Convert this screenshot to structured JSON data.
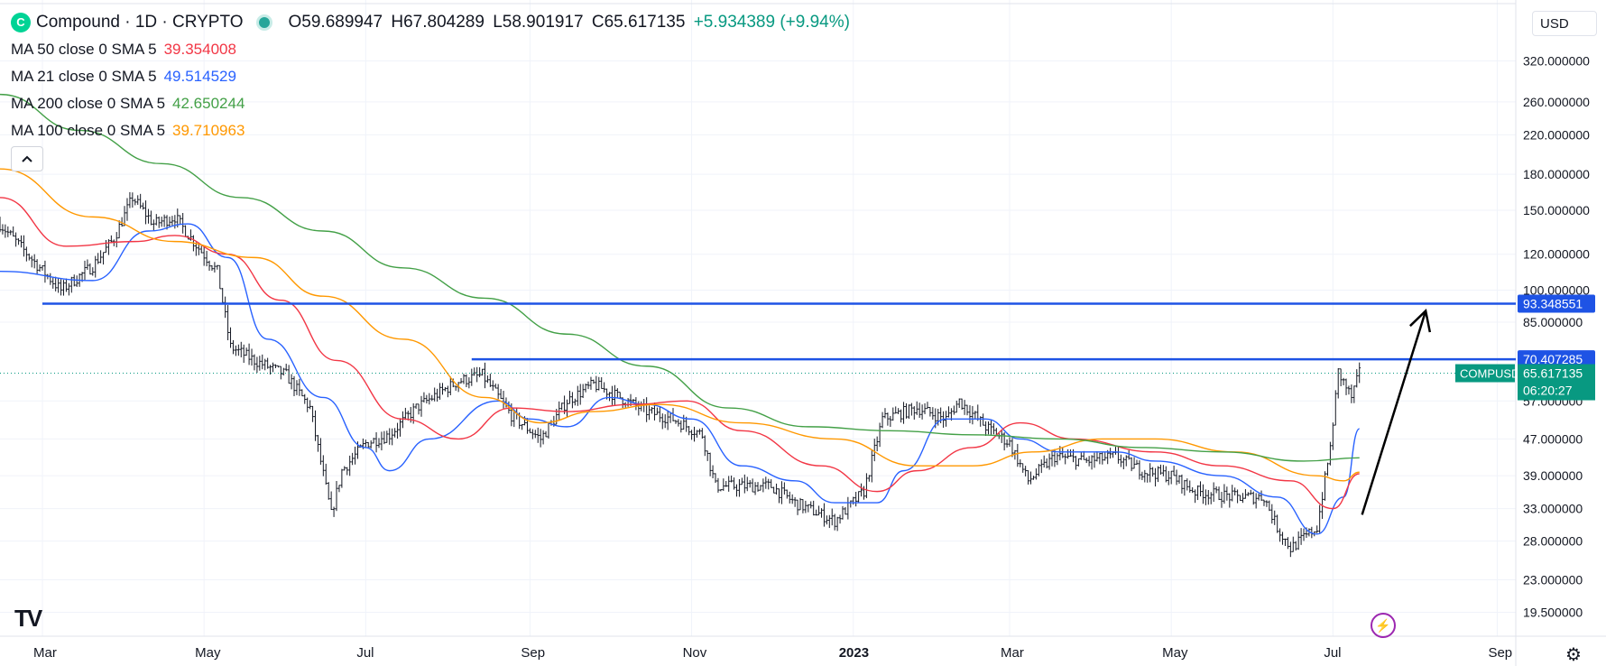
{
  "header": {
    "symbol_title": "Compound · 1D · CRYPTO",
    "logo_glyph": "C",
    "ohlc": {
      "open": "O59.689947",
      "high": "H67.804289",
      "low": "L58.901917",
      "close": "C65.617135",
      "change": "+5.934389 (+9.94%)"
    }
  },
  "indicators": [
    {
      "label": "MA 50 close 0 SMA 5",
      "value": "39.354008",
      "color": "#f23645"
    },
    {
      "label": "MA 21 close 0 SMA 5",
      "value": "49.514529",
      "color": "#2962ff"
    },
    {
      "label": "MA 200 close 0 SMA 5",
      "value": "42.650244",
      "color": "#43a047"
    },
    {
      "label": "MA 100 close 0 SMA 5",
      "value": "39.710963",
      "color": "#ff9800"
    }
  ],
  "collapse_icon": "chevron-up-icon",
  "currency": "USD",
  "colors": {
    "hline": "#1e53e5",
    "candles": "#131722",
    "arrow": "#000000",
    "compusd_badge": "#089981"
  },
  "chart_data": {
    "type": "ohlc",
    "scale": "log",
    "ylim": [
      18.5,
      380
    ],
    "y_ticks": [
      "320.000000",
      "260.000000",
      "220.000000",
      "180.000000",
      "150.000000",
      "120.000000",
      "100.000000",
      "85.000000",
      "57.000000",
      "47.000000",
      "39.000000",
      "33.000000",
      "28.000000",
      "23.000000",
      "19.500000"
    ],
    "x_ticks": [
      "Mar",
      "May",
      "Jul",
      "Sep",
      "Nov",
      "2023",
      "Mar",
      "May",
      "Jul",
      "Sep"
    ],
    "x_tick_dates": [
      "2022-03-01",
      "2022-05-01",
      "2022-07-01",
      "2022-09-01",
      "2022-11-01",
      "2023-01-01",
      "2023-03-01",
      "2023-05-01",
      "2023-07-01",
      "2023-09-01"
    ],
    "date_range": [
      "2022-02-13",
      "2023-09-08"
    ],
    "close_path": [
      [
        "2022-02-13",
        140
      ],
      [
        "2022-02-28",
        112
      ],
      [
        "2022-03-08",
        100
      ],
      [
        "2022-03-20",
        113
      ],
      [
        "2022-03-28",
        130
      ],
      [
        "2022-04-04",
        160
      ],
      [
        "2022-04-12",
        140
      ],
      [
        "2022-04-20",
        145
      ],
      [
        "2022-04-27",
        128
      ],
      [
        "2022-05-06",
        110
      ],
      [
        "2022-05-11",
        75
      ],
      [
        "2022-05-20",
        70
      ],
      [
        "2022-06-01",
        65
      ],
      [
        "2022-06-10",
        55
      ],
      [
        "2022-06-18",
        32
      ],
      [
        "2022-06-22",
        40
      ],
      [
        "2022-07-01",
        46
      ],
      [
        "2022-07-10",
        48
      ],
      [
        "2022-07-20",
        55
      ],
      [
        "2022-07-30",
        60
      ],
      [
        "2022-08-05",
        63
      ],
      [
        "2022-08-14",
        65
      ],
      [
        "2022-08-25",
        53
      ],
      [
        "2022-09-05",
        47
      ],
      [
        "2022-09-15",
        57
      ],
      [
        "2022-09-25",
        62
      ],
      [
        "2022-10-05",
        58
      ],
      [
        "2022-10-15",
        54
      ],
      [
        "2022-10-25",
        52
      ],
      [
        "2022-11-05",
        48
      ],
      [
        "2022-11-10",
        37
      ],
      [
        "2022-11-20",
        37
      ],
      [
        "2022-12-01",
        37
      ],
      [
        "2022-12-10",
        34
      ],
      [
        "2022-12-25",
        31
      ],
      [
        "2023-01-05",
        36
      ],
      [
        "2023-01-12",
        52
      ],
      [
        "2023-01-25",
        55
      ],
      [
        "2023-02-05",
        52
      ],
      [
        "2023-02-10",
        57
      ],
      [
        "2023-02-20",
        50
      ],
      [
        "2023-03-01",
        46
      ],
      [
        "2023-03-08",
        38
      ],
      [
        "2023-03-18",
        43
      ],
      [
        "2023-03-30",
        42
      ],
      [
        "2023-04-10",
        43
      ],
      [
        "2023-04-20",
        40
      ],
      [
        "2023-05-01",
        39
      ],
      [
        "2023-05-10",
        36
      ],
      [
        "2023-05-25",
        35
      ],
      [
        "2023-06-05",
        35
      ],
      [
        "2023-06-10",
        30
      ],
      [
        "2023-06-15",
        27
      ],
      [
        "2023-06-25",
        30
      ],
      [
        "2023-06-30",
        45
      ],
      [
        "2023-07-03",
        66
      ],
      [
        "2023-07-08",
        58
      ],
      [
        "2023-07-11",
        65.6
      ]
    ],
    "moving_averages": [
      {
        "name": "MA 21",
        "color": "#2962ff",
        "points": [
          [
            "2022-02-13",
            110
          ],
          [
            "2022-03-20",
            105
          ],
          [
            "2022-04-10",
            135
          ],
          [
            "2022-04-25",
            140
          ],
          [
            "2022-05-10",
            118
          ],
          [
            "2022-05-25",
            78
          ],
          [
            "2022-06-15",
            58
          ],
          [
            "2022-07-01",
            45
          ],
          [
            "2022-07-10",
            40
          ],
          [
            "2022-07-25",
            47
          ],
          [
            "2022-08-20",
            57
          ],
          [
            "2022-09-01",
            52
          ],
          [
            "2022-09-15",
            50
          ],
          [
            "2022-10-01",
            58
          ],
          [
            "2022-10-15",
            56
          ],
          [
            "2022-11-01",
            52
          ],
          [
            "2022-11-20",
            41
          ],
          [
            "2022-12-10",
            38
          ],
          [
            "2022-12-25",
            34
          ],
          [
            "2023-01-10",
            34
          ],
          [
            "2023-01-20",
            40
          ],
          [
            "2023-02-05",
            52
          ],
          [
            "2023-02-20",
            52
          ],
          [
            "2023-03-05",
            47
          ],
          [
            "2023-03-20",
            44
          ],
          [
            "2023-04-10",
            44
          ],
          [
            "2023-04-25",
            42
          ],
          [
            "2023-05-20",
            39
          ],
          [
            "2023-06-10",
            35
          ],
          [
            "2023-06-25",
            29
          ],
          [
            "2023-07-05",
            35
          ],
          [
            "2023-07-11",
            49.5
          ]
        ]
      },
      {
        "name": "MA 50",
        "color": "#f23645",
        "points": [
          [
            "2022-02-13",
            160
          ],
          [
            "2022-03-10",
            125
          ],
          [
            "2022-04-05",
            128
          ],
          [
            "2022-04-20",
            132
          ],
          [
            "2022-05-10",
            120
          ],
          [
            "2022-05-30",
            95
          ],
          [
            "2022-06-20",
            70
          ],
          [
            "2022-07-15",
            52
          ],
          [
            "2022-08-05",
            47
          ],
          [
            "2022-08-25",
            55
          ],
          [
            "2022-09-15",
            54
          ],
          [
            "2022-10-10",
            56
          ],
          [
            "2022-10-30",
            57
          ],
          [
            "2022-11-20",
            49
          ],
          [
            "2022-12-20",
            41
          ],
          [
            "2023-01-10",
            36
          ],
          [
            "2023-01-25",
            40
          ],
          [
            "2023-02-15",
            45
          ],
          [
            "2023-03-05",
            51
          ],
          [
            "2023-03-25",
            47
          ],
          [
            "2023-04-25",
            44
          ],
          [
            "2023-05-20",
            41
          ],
          [
            "2023-06-15",
            38
          ],
          [
            "2023-07-01",
            33
          ],
          [
            "2023-07-11",
            39.4
          ]
        ]
      },
      {
        "name": "MA 100",
        "color": "#ff9800",
        "points": [
          [
            "2022-02-13",
            185
          ],
          [
            "2022-03-20",
            145
          ],
          [
            "2022-04-20",
            128
          ],
          [
            "2022-05-20",
            118
          ],
          [
            "2022-06-15",
            97
          ],
          [
            "2022-07-15",
            78
          ],
          [
            "2022-08-15",
            58
          ],
          [
            "2022-09-05",
            51
          ],
          [
            "2022-09-25",
            54
          ],
          [
            "2022-10-20",
            56
          ],
          [
            "2022-11-20",
            51
          ],
          [
            "2022-12-25",
            47
          ],
          [
            "2023-01-25",
            41
          ],
          [
            "2023-02-15",
            41
          ],
          [
            "2023-03-10",
            44
          ],
          [
            "2023-04-05",
            47
          ],
          [
            "2023-04-25",
            47
          ],
          [
            "2023-05-25",
            44
          ],
          [
            "2023-06-25",
            39
          ],
          [
            "2023-07-05",
            38
          ],
          [
            "2023-07-11",
            39.7
          ]
        ]
      },
      {
        "name": "MA 200",
        "color": "#43a047",
        "points": [
          [
            "2022-02-13",
            270
          ],
          [
            "2022-03-15",
            225
          ],
          [
            "2022-04-15",
            190
          ],
          [
            "2022-05-15",
            160
          ],
          [
            "2022-06-15",
            135
          ],
          [
            "2022-07-15",
            112
          ],
          [
            "2022-08-15",
            96
          ],
          [
            "2022-09-15",
            80
          ],
          [
            "2022-10-15",
            68
          ],
          [
            "2022-11-15",
            55
          ],
          [
            "2022-12-15",
            50
          ],
          [
            "2023-01-15",
            49
          ],
          [
            "2023-02-15",
            48
          ],
          [
            "2023-03-20",
            47
          ],
          [
            "2023-04-20",
            45
          ],
          [
            "2023-05-20",
            44
          ],
          [
            "2023-06-20",
            42
          ],
          [
            "2023-07-11",
            42.7
          ]
        ]
      }
    ],
    "horizontal_lines": [
      {
        "value": 93.348551,
        "label": "93.348551",
        "start": "2022-03-01"
      },
      {
        "value": 70.407285,
        "label": "70.407285",
        "start": "2022-08-10"
      }
    ],
    "current_price": {
      "value": 65.617135,
      "symbol": "COMPUSD",
      "price_label": "65.617135",
      "countdown": "06:20:27"
    },
    "arrow": {
      "from": [
        "2023-07-12",
        32
      ],
      "to": [
        "2023-08-05",
        90
      ]
    }
  },
  "icons": {
    "tradingview_logo": "TV",
    "bolt": "⚡",
    "gear": "⚙"
  }
}
